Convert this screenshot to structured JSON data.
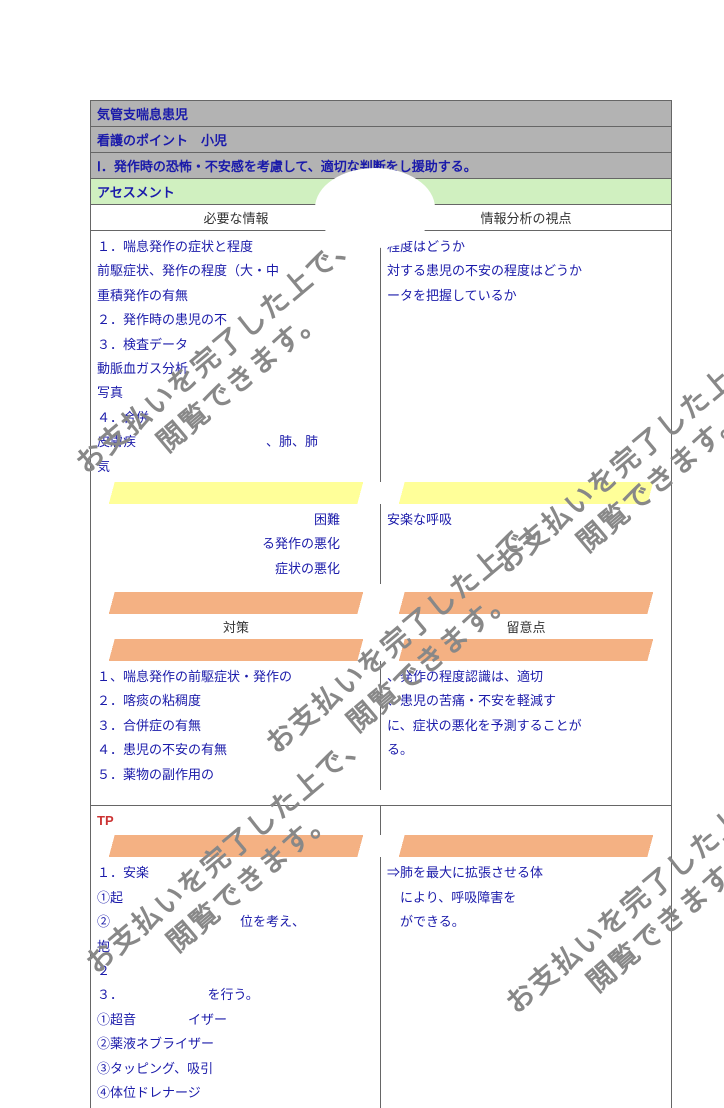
{
  "header": {
    "title": "気管支喘息患児",
    "subtitle": "看護のポイント　小児",
    "section_i": "Ⅰ．発作時の恐怖・不安感を考慮して、適切な判断をし援助する。",
    "assessment": "アセスメント"
  },
  "col_heads": {
    "left1": "必要な情報",
    "right1": "情報分析の視点",
    "left2": "対策",
    "right2": "留意点"
  },
  "block1": {
    "left": [
      "１．喘息発作の症状と程度",
      "前駆症状、発作の程度（大・中",
      "重積発作の有無",
      "２．発作時の患児の不",
      "３．検査データ",
      "動脈血ガス分析",
      "写真",
      "４．合併",
      "皮膚疾　　　　　　　　　　、肺、肺",
      "気"
    ],
    "right": [
      "程度はどうか",
      "対する患児の不安の程度はどうか",
      "ータを把握しているか"
    ]
  },
  "block2": {
    "left": [
      "困難",
      "る発作の悪化",
      "症状の悪化"
    ],
    "right": [
      "安楽な呼吸"
    ]
  },
  "block3": {
    "left": [
      "１、喘息発作の前駆症状・発作の",
      "２．喀痰の粘稠度",
      "３．合併症の有無",
      "４．患児の不安の有無",
      "５．薬物の副作用の"
    ],
    "right": [
      "、発作の程度認識は、適切",
      "、患児の苦痛・不安を軽減す",
      "に、症状の悪化を予測することが",
      "る。"
    ]
  },
  "tp_label": "TP",
  "block4": {
    "left": [
      "１．安楽",
      "①起",
      "②　　　　　　　　　　位を考え、",
      "抱",
      "２",
      "３．　　　　　　　を行う。",
      "①超音　　　　イザー",
      "②薬液ネブライザー",
      "③タッピング、吸引",
      "④体位ドレナージ"
    ],
    "right": [
      "⇒肺を最大に拡張させる体",
      "　により、呼吸障害を",
      "　ができる。"
    ]
  },
  "watermark_text": "お支払いを完了した上で、\n閲覧できます。",
  "colors": {
    "gray": "#b3b3b3",
    "green": "#d0f0c0",
    "yellow": "#ffff99",
    "orange": "#f4b183",
    "blue": "#1a1aaa",
    "red": "#cc3333"
  }
}
